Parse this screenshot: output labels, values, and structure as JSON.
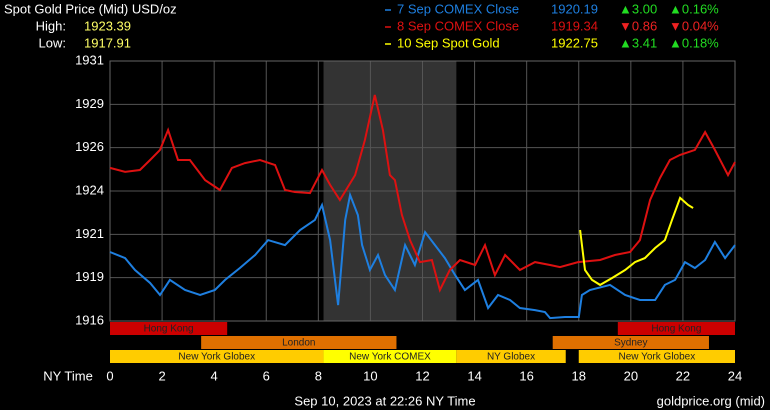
{
  "chart_data": {
    "type": "line",
    "title": "Spot Gold Price (Mid) USD/oz",
    "high_label": "High:",
    "high": 1923.39,
    "low_label": "Low:",
    "low": 1917.91,
    "x_label": "NY Time",
    "footer_left": "Sep 10, 2023 at 22:26 NY Time",
    "footer_right": "goldprice.org (mid)",
    "xlim": [
      0,
      24
    ],
    "xticks": [
      0,
      2,
      4,
      6,
      8,
      10,
      12,
      14,
      16,
      18,
      20,
      22,
      24
    ],
    "ylim": [
      1916,
      1931
    ],
    "yticks": [
      1916,
      {
        "value": 1918.5,
        "label": "1919"
      },
      1921,
      {
        "value": 1923.5,
        "label": "1924"
      },
      1926,
      {
        "value": 1928.5,
        "label": "1929"
      },
      1931
    ],
    "grid": true,
    "shade": [
      8.2,
      13.3
    ],
    "series": [
      {
        "name": "7 Sep COMEX Close",
        "color": "#1e7fe0",
        "close": 1920.19,
        "change": "▲3.00",
        "change_pct": "▲0.16%",
        "change_color": "#22dd22",
        "x": [
          0,
          0.58,
          0.96,
          1.54,
          1.92,
          2.3,
          2.88,
          3.46,
          4.03,
          4.42,
          4.99,
          5.57,
          6.07,
          6.72,
          7.3,
          7.87,
          8.14,
          8.45,
          8.76,
          9.03,
          9.22,
          9.52,
          9.68,
          9.98,
          10.29,
          10.56,
          10.94,
          11.33,
          11.71,
          12.1,
          12.48,
          12.86,
          13.25,
          13.63,
          14.13,
          14.52,
          14.9,
          15.36,
          15.74,
          16.32,
          16.7,
          16.9,
          17.47,
          18.0,
          18.12,
          18.43,
          19.2,
          19.78,
          20.35,
          20.93,
          21.31,
          21.7,
          22.08,
          22.46,
          22.85,
          23.23,
          23.62,
          24
        ],
        "values": [
          1919.98,
          1919.63,
          1918.94,
          1918.19,
          1917.5,
          1918.37,
          1917.79,
          1917.5,
          1917.79,
          1918.37,
          1919.06,
          1919.81,
          1920.67,
          1920.38,
          1921.25,
          1921.83,
          1922.69,
          1920.67,
          1916.92,
          1921.83,
          1923.27,
          1922.11,
          1920.38,
          1918.94,
          1919.81,
          1918.65,
          1917.79,
          1920.38,
          1919.23,
          1921.13,
          1920.38,
          1919.63,
          1918.65,
          1917.79,
          1918.37,
          1916.75,
          1917.5,
          1917.21,
          1916.75,
          1916.63,
          1916.52,
          1916.17,
          1916.23,
          1916.23,
          1917.5,
          1917.79,
          1918.08,
          1917.5,
          1917.21,
          1917.21,
          1918.08,
          1918.37,
          1919.4,
          1919.06,
          1919.52,
          1920.56,
          1919.63,
          1920.38
        ]
      },
      {
        "name": "8 Sep COMEX Close",
        "color": "#dd1111",
        "close": 1919.34,
        "change": "▼0.86",
        "change_pct": "▼0.04%",
        "change_color": "#ee2222",
        "x": [
          0,
          0.58,
          1.15,
          1.54,
          1.92,
          2.23,
          2.61,
          3.07,
          3.65,
          4.22,
          4.68,
          5.18,
          5.76,
          6.34,
          6.72,
          7.1,
          7.68,
          8.14,
          8.45,
          8.83,
          9.41,
          9.79,
          10.17,
          10.48,
          10.75,
          10.94,
          11.21,
          11.52,
          11.9,
          12.36,
          12.67,
          13.05,
          13.44,
          14.02,
          14.4,
          14.78,
          15.17,
          15.74,
          16.32,
          16.9,
          17.28,
          17.97,
          18.82,
          19.39,
          19.97,
          20.35,
          20.74,
          21.12,
          21.5,
          21.89,
          22.46,
          22.85,
          23.23,
          23.73,
          24
        ],
        "values": [
          1924.83,
          1924.6,
          1924.71,
          1925.29,
          1925.87,
          1927.02,
          1925.29,
          1925.29,
          1924.13,
          1923.56,
          1924.83,
          1925.11,
          1925.29,
          1925,
          1923.56,
          1923.44,
          1923.38,
          1924.71,
          1923.85,
          1922.98,
          1924.42,
          1926.44,
          1929.04,
          1927.02,
          1924.42,
          1924.13,
          1922.12,
          1920.67,
          1919.4,
          1919.52,
          1917.79,
          1918.94,
          1919.52,
          1919.23,
          1920.38,
          1918.65,
          1919.81,
          1918.94,
          1919.4,
          1919.23,
          1919.11,
          1919.4,
          1919.52,
          1919.81,
          1919.98,
          1920.67,
          1922.98,
          1924.25,
          1925.29,
          1925.58,
          1925.87,
          1926.9,
          1925.87,
          1924.42,
          1925.17
        ]
      },
      {
        "name": "10 Sep Spot Gold",
        "color": "#ffff00",
        "close": 1922.75,
        "change": "▲3.41",
        "change_pct": "▲0.18%",
        "change_color": "#22dd22",
        "x": [
          18.05,
          18.24,
          18.51,
          18.82,
          19.28,
          19.78,
          20.16,
          20.54,
          20.93,
          21.31,
          21.58,
          21.89,
          22.2,
          22.39
        ],
        "values": [
          1921.25,
          1918.94,
          1918.37,
          1918.08,
          1918.48,
          1918.94,
          1919.4,
          1919.63,
          1920.21,
          1920.67,
          1921.83,
          1923.1,
          1922.69,
          1922.52
        ]
      }
    ],
    "sessions": [
      {
        "label": "Hong Kong",
        "start": 0,
        "end": 4.5,
        "row": 0,
        "color": "#cc0000"
      },
      {
        "label": "Hong Kong",
        "start": 19.5,
        "end": 24,
        "row": 0,
        "color": "#cc0000"
      },
      {
        "label": "London",
        "start": 3.5,
        "end": 11,
        "row": 1,
        "color": "#e07000"
      },
      {
        "label": "Sydney",
        "start": 17,
        "end": 23,
        "row": 1,
        "color": "#e07000"
      },
      {
        "label": "New York Globex",
        "start": 0,
        "end": 8.2,
        "row": 2,
        "color": "#ffcc00"
      },
      {
        "label": "New York COMEX",
        "start": 8.2,
        "end": 13.3,
        "row": 2,
        "color": "#ffff00"
      },
      {
        "label": "NY Globex",
        "start": 13.3,
        "end": 17.5,
        "row": 2,
        "color": "#ffcc00"
      },
      {
        "label": "New York Globex",
        "start": 18,
        "end": 24,
        "row": 2,
        "color": "#ffcc00"
      }
    ]
  }
}
